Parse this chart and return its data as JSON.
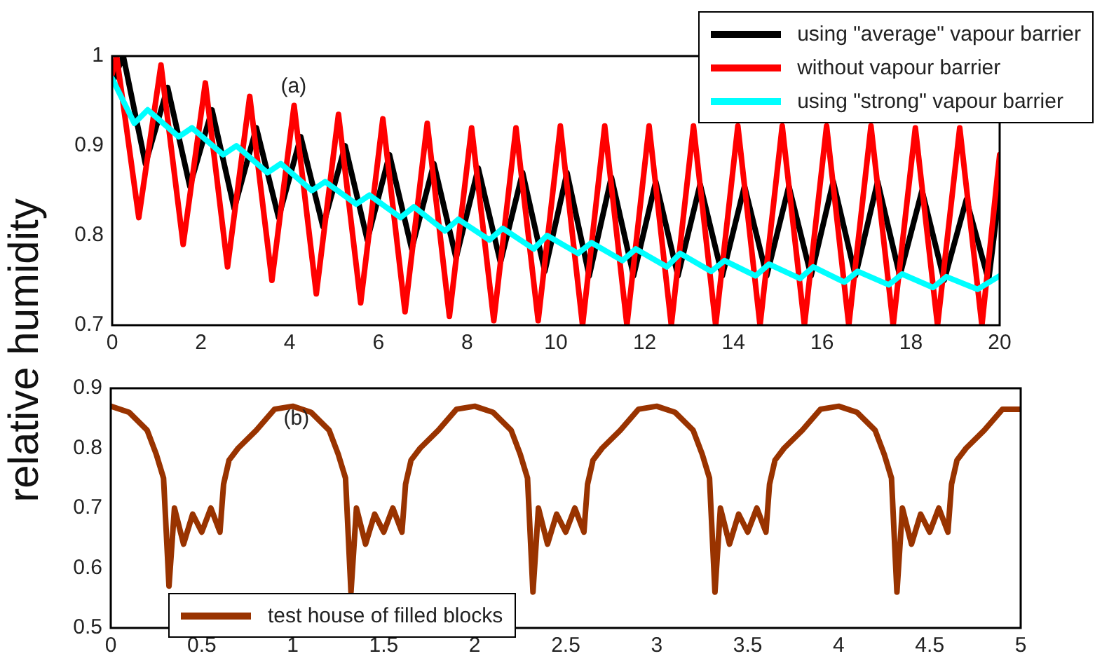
{
  "chart_data": [
    {
      "type": "line",
      "ylabel": "relative humidity",
      "annotations": [
        "(a)"
      ],
      "xlim": [
        0,
        20
      ],
      "xticks": [
        0,
        2,
        4,
        6,
        8,
        10,
        12,
        14,
        16,
        18,
        20
      ],
      "ylim": [
        0.7,
        1
      ],
      "yticks": [
        0.7,
        0.8,
        0.9,
        1
      ],
      "grid": false,
      "legend": "top right",
      "series": [
        {
          "name": "using \"average\" vapour barrier",
          "color": "#000000",
          "x": [
            0,
            0.25,
            0.75,
            1.25,
            1.75,
            2.25,
            2.75,
            3.25,
            3.75,
            4.25,
            4.75,
            5.25,
            5.75,
            6.25,
            6.75,
            7.25,
            7.75,
            8.25,
            8.75,
            9.25,
            9.75,
            10.25,
            10.75,
            11.25,
            11.75,
            12.25,
            12.75,
            13.25,
            13.75,
            14.25,
            14.75,
            15.25,
            15.75,
            16.25,
            16.75,
            17.25,
            17.75,
            18.25,
            18.75,
            19.25,
            19.75,
            20
          ],
          "values": [
            0.97,
            1.0,
            0.88,
            0.965,
            0.855,
            0.94,
            0.83,
            0.92,
            0.82,
            0.91,
            0.81,
            0.9,
            0.795,
            0.89,
            0.785,
            0.88,
            0.775,
            0.875,
            0.77,
            0.87,
            0.76,
            0.87,
            0.755,
            0.865,
            0.755,
            0.86,
            0.755,
            0.857,
            0.755,
            0.855,
            0.755,
            0.855,
            0.755,
            0.86,
            0.755,
            0.86,
            0.755,
            0.85,
            0.75,
            0.84,
            0.75,
            0.85
          ]
        },
        {
          "name": "without vapour barrier",
          "color": "#ff0000",
          "x": [
            0,
            0.1,
            0.6,
            1.1,
            1.6,
            2.1,
            2.6,
            3.1,
            3.6,
            4.1,
            4.6,
            5.1,
            5.6,
            6.1,
            6.6,
            7.1,
            7.6,
            8.1,
            8.6,
            9.1,
            9.6,
            10.1,
            10.6,
            11.1,
            11.6,
            12.1,
            12.6,
            13.1,
            13.6,
            14.1,
            14.6,
            15.1,
            15.6,
            16.1,
            16.6,
            17.1,
            17.6,
            18.1,
            18.6,
            19.1,
            19.6,
            20
          ],
          "values": [
            0.98,
            1.0,
            0.82,
            0.99,
            0.79,
            0.97,
            0.765,
            0.955,
            0.75,
            0.945,
            0.735,
            0.935,
            0.725,
            0.93,
            0.715,
            0.925,
            0.71,
            0.92,
            0.705,
            0.92,
            0.705,
            0.922,
            0.7,
            0.922,
            0.7,
            0.922,
            0.7,
            0.922,
            0.7,
            0.922,
            0.7,
            0.922,
            0.7,
            0.922,
            0.7,
            0.922,
            0.7,
            0.92,
            0.7,
            0.92,
            0.7,
            0.89
          ]
        },
        {
          "name": "using \"strong\" vapour barrier",
          "color": "#00ffff",
          "x": [
            0,
            0.5,
            0.8,
            1.5,
            1.8,
            2.5,
            2.8,
            3.5,
            3.8,
            4.5,
            4.8,
            5.5,
            5.8,
            6.5,
            6.8,
            7.5,
            7.8,
            8.5,
            8.8,
            9.5,
            9.8,
            10.5,
            10.8,
            11.5,
            11.8,
            12.5,
            12.8,
            13.5,
            13.8,
            14.5,
            14.8,
            15.5,
            15.8,
            16.5,
            16.8,
            17.5,
            17.8,
            18.5,
            18.8,
            19.5,
            20
          ],
          "values": [
            0.975,
            0.925,
            0.94,
            0.91,
            0.92,
            0.89,
            0.9,
            0.87,
            0.88,
            0.85,
            0.86,
            0.835,
            0.845,
            0.82,
            0.832,
            0.805,
            0.818,
            0.795,
            0.808,
            0.785,
            0.8,
            0.78,
            0.792,
            0.772,
            0.785,
            0.765,
            0.78,
            0.76,
            0.772,
            0.755,
            0.768,
            0.752,
            0.765,
            0.748,
            0.76,
            0.745,
            0.757,
            0.742,
            0.754,
            0.74,
            0.755
          ]
        }
      ]
    },
    {
      "type": "line",
      "annotations": [
        "(b)"
      ],
      "xlim": [
        0,
        5
      ],
      "xticks": [
        0,
        0.5,
        1,
        1.5,
        2,
        2.5,
        3,
        3.5,
        4,
        4.5,
        5
      ],
      "ylim": [
        0.5,
        0.9
      ],
      "yticks": [
        0.5,
        0.6,
        0.7,
        0.8,
        0.9
      ],
      "grid": false,
      "legend": "bottom left",
      "series": [
        {
          "name": "test house of filled blocks",
          "color": "#993300",
          "x": [
            0,
            0.1,
            0.2,
            0.25,
            0.29,
            0.32,
            0.35,
            0.4,
            0.45,
            0.5,
            0.55,
            0.6,
            0.62,
            0.65,
            0.7,
            0.8,
            0.9,
            1,
            1.1,
            1.2,
            1.25,
            1.29,
            1.32,
            1.35,
            1.4,
            1.45,
            1.5,
            1.55,
            1.6,
            1.62,
            1.65,
            1.7,
            1.8,
            1.9,
            2,
            2.1,
            2.2,
            2.25,
            2.29,
            2.32,
            2.35,
            2.4,
            2.45,
            2.5,
            2.55,
            2.6,
            2.62,
            2.65,
            2.7,
            2.8,
            2.9,
            3,
            3.1,
            3.2,
            3.25,
            3.29,
            3.32,
            3.35,
            3.4,
            3.45,
            3.5,
            3.55,
            3.6,
            3.62,
            3.65,
            3.7,
            3.8,
            3.9,
            4,
            4.1,
            4.2,
            4.25,
            4.29,
            4.32,
            4.35,
            4.4,
            4.45,
            4.5,
            4.55,
            4.6,
            4.62,
            4.65,
            4.7,
            4.8,
            4.9,
            5
          ],
          "values": [
            0.87,
            0.86,
            0.83,
            0.79,
            0.75,
            0.57,
            0.7,
            0.64,
            0.69,
            0.66,
            0.7,
            0.66,
            0.74,
            0.78,
            0.8,
            0.83,
            0.865,
            0.87,
            0.86,
            0.83,
            0.79,
            0.75,
            0.56,
            0.7,
            0.64,
            0.69,
            0.66,
            0.7,
            0.66,
            0.74,
            0.78,
            0.8,
            0.83,
            0.865,
            0.87,
            0.86,
            0.83,
            0.79,
            0.75,
            0.56,
            0.7,
            0.64,
            0.69,
            0.66,
            0.7,
            0.66,
            0.74,
            0.78,
            0.8,
            0.83,
            0.865,
            0.87,
            0.86,
            0.83,
            0.79,
            0.75,
            0.56,
            0.7,
            0.64,
            0.69,
            0.66,
            0.7,
            0.66,
            0.74,
            0.78,
            0.8,
            0.83,
            0.865,
            0.87,
            0.86,
            0.83,
            0.79,
            0.75,
            0.56,
            0.7,
            0.64,
            0.69,
            0.66,
            0.7,
            0.66,
            0.74,
            0.78,
            0.8,
            0.83,
            0.865,
            0.865
          ]
        }
      ]
    }
  ]
}
